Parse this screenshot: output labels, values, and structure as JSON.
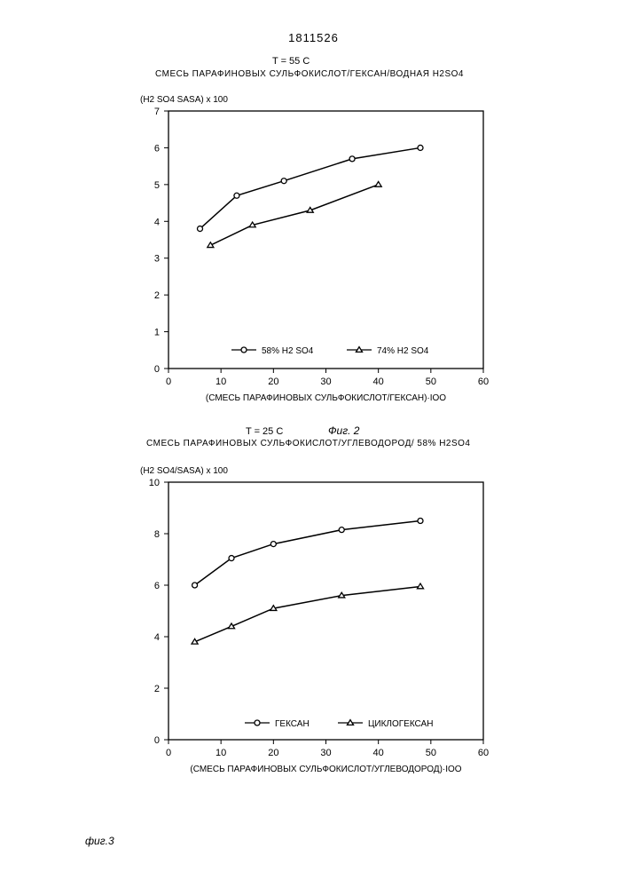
{
  "doc_number": "1811526",
  "chart1": {
    "type": "line",
    "temp_label": "T = 55 C",
    "title": "СМЕСЬ ПАРАФИНОВЫХ СУЛЬФОКИСЛОТ/ГЕКСАН/ВОДНАЯ H2SO4",
    "y_axis_label": "(H2 SO4 SASA) x 100",
    "x_axis_label": "(СМЕСЬ ПАРАФИНОВЫХ СУЛЬФОКИСЛОТ/ГЕКСАН)·IOO",
    "fig_label": "Фиг. 2",
    "xlim": [
      0,
      60
    ],
    "ylim": [
      0,
      7
    ],
    "xticks": [
      0,
      10,
      20,
      30,
      40,
      50,
      60
    ],
    "yticks": [
      0,
      1,
      2,
      3,
      4,
      5,
      6,
      7
    ],
    "series": [
      {
        "name": "58% H2 SO4",
        "marker": "circle",
        "data": [
          [
            6,
            3.8
          ],
          [
            13,
            4.7
          ],
          [
            22,
            5.1
          ],
          [
            35,
            5.7
          ],
          [
            48,
            6.0
          ]
        ]
      },
      {
        "name": "74% H2 SO4",
        "marker": "triangle",
        "data": [
          [
            8,
            3.35
          ],
          [
            16,
            3.9
          ],
          [
            27,
            4.3
          ],
          [
            40,
            5.0
          ]
        ]
      }
    ],
    "legend": {
      "items": [
        {
          "marker": "circle",
          "label": "58% H2 SO4"
        },
        {
          "marker": "triangle",
          "label": "74% H2 SO4"
        }
      ]
    },
    "colors": {
      "line": "#000000",
      "axis": "#000000",
      "text": "#000000",
      "background": "#ffffff"
    },
    "line_width": 1.5,
    "marker_size": 6,
    "tick_fontsize": 11,
    "label_fontsize": 10
  },
  "chart2": {
    "type": "line",
    "temp_label": "T = 25 C",
    "title": "СМЕСЬ ПАРАФИНОВЫХ СУЛЬФОКИСЛОТ/УГЛЕВОДОРОД/ 58% H2SO4",
    "y_axis_label": "(H2 SO4/SASA) x 100",
    "x_axis_label": "(СМЕСЬ ПАРАФИНОВЫХ СУЛЬФОКИСЛОТ/УГЛЕВОДОРОД)·IOO",
    "fig_label": "фиг.3",
    "xlim": [
      0,
      60
    ],
    "ylim": [
      0,
      10
    ],
    "xticks": [
      0,
      10,
      20,
      30,
      40,
      50,
      60
    ],
    "yticks": [
      0,
      2,
      4,
      6,
      8,
      10
    ],
    "series": [
      {
        "name": "ГЕКСАН",
        "marker": "circle",
        "data": [
          [
            5,
            6.0
          ],
          [
            12,
            7.05
          ],
          [
            20,
            7.6
          ],
          [
            33,
            8.15
          ],
          [
            48,
            8.5
          ]
        ]
      },
      {
        "name": "ЦИКЛОГЕКСАН",
        "marker": "triangle",
        "data": [
          [
            5,
            3.8
          ],
          [
            12,
            4.4
          ],
          [
            20,
            5.1
          ],
          [
            33,
            5.6
          ],
          [
            48,
            5.95
          ]
        ]
      }
    ],
    "legend": {
      "items": [
        {
          "marker": "circle",
          "label": "ГЕКСАН"
        },
        {
          "marker": "triangle",
          "label": "ЦИКЛОГЕКСАН"
        }
      ]
    },
    "colors": {
      "line": "#000000",
      "axis": "#000000",
      "text": "#000000",
      "background": "#ffffff"
    },
    "line_width": 1.5,
    "marker_size": 6,
    "tick_fontsize": 11,
    "label_fontsize": 10
  }
}
